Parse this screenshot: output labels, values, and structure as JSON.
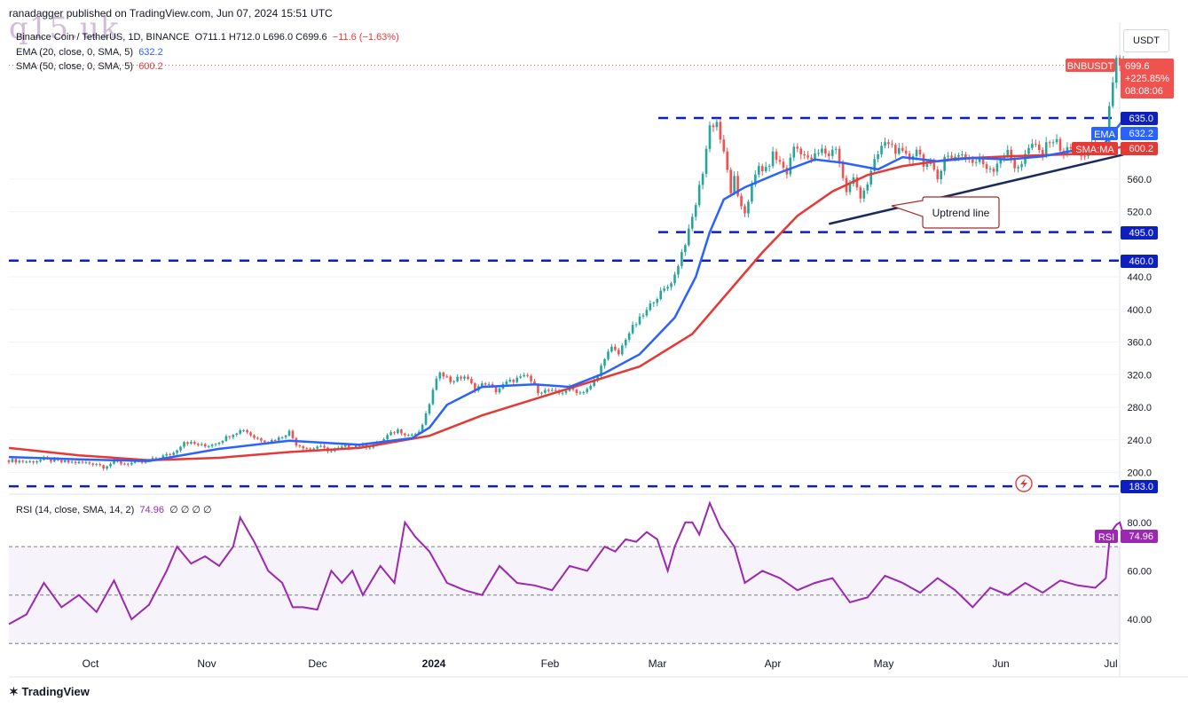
{
  "header": {
    "publisher": "ranadagger published on TradingView.com, Jun 07, 2024 15:51 UTC",
    "watermark": "q15.uk"
  },
  "legend": {
    "symbol": "Binance Coin / TetherUS, 1D, BINANCE",
    "ohlc": "O711.1 H712.0 L696.0 C699.6",
    "change": "−11.6 (−1.63%)",
    "ema_label": "EMA (20, close, 0, SMA, 5)",
    "ema_value": "632.2",
    "sma_label": "SMA (50, close, 0, SMA, 5)",
    "sma_value": "600.2",
    "rsi_label": "RSI (14, close, SMA, 14, 2)",
    "rsi_value": "74.96",
    "rsi_extra": "∅ ∅ ∅ ∅"
  },
  "currency_button": "USDT",
  "price_tag": {
    "symbol": "BNBUSDT",
    "price": "699.6",
    "change": "+225.85%",
    "countdown": "08:08:06"
  },
  "level_tags": {
    "res": "635.0",
    "ema": "EMA",
    "ema_val": "632.2",
    "sma": "SMA:MA",
    "sma_val": "600.2",
    "s1": "495.0",
    "s2": "460.0",
    "s3": "183.0"
  },
  "rsi_tag": {
    "label": "RSI",
    "value": "74.96"
  },
  "annotation": "Uptrend line",
  "footer": {
    "brand": "TradingView"
  },
  "colors": {
    "up": "#26a69a",
    "down": "#ef5350",
    "ema": "#2962ff",
    "sma": "#e53935",
    "rsi": "#9c27b0",
    "levels": "#0d1fbf",
    "trendline": "#1a2a5a"
  },
  "chart_data": {
    "type": "candlestick",
    "symbol": "BNBUSDT",
    "price_axis": {
      "ticks": [
        200.0,
        240.0,
        280.0,
        320.0,
        360.0,
        400.0,
        440.0,
        520.0,
        560.0
      ],
      "range": [
        180,
        728
      ]
    },
    "time_axis": [
      "Oct",
      "Nov",
      "Dec",
      "2024",
      "Feb",
      "Mar",
      "Apr",
      "May",
      "Jun",
      "Jul"
    ],
    "horizontal_levels": [
      635.0,
      495.0,
      460.0,
      183.0
    ],
    "close_path": [
      [
        0,
        215
      ],
      [
        6,
        213
      ],
      [
        10,
        216
      ],
      [
        15,
        213
      ],
      [
        20,
        212
      ],
      [
        25,
        211
      ],
      [
        27,
        207
      ],
      [
        30,
        213
      ],
      [
        33,
        211
      ],
      [
        38,
        212
      ],
      [
        42,
        217
      ],
      [
        47,
        224
      ],
      [
        50,
        238
      ],
      [
        52,
        236
      ],
      [
        56,
        232
      ],
      [
        60,
        238
      ],
      [
        64,
        248
      ],
      [
        67,
        253
      ],
      [
        70,
        243
      ],
      [
        74,
        238
      ],
      [
        77,
        242
      ],
      [
        80,
        250
      ],
      [
        82,
        235
      ],
      [
        86,
        228
      ],
      [
        88,
        232
      ],
      [
        92,
        226
      ],
      [
        96,
        232
      ],
      [
        99,
        233
      ],
      [
        103,
        232
      ],
      [
        106,
        236
      ],
      [
        108,
        245
      ],
      [
        111,
        252
      ],
      [
        114,
        246
      ],
      [
        117,
        248
      ],
      [
        119,
        270
      ],
      [
        121,
        300
      ],
      [
        123,
        325
      ],
      [
        126,
        312
      ],
      [
        130,
        318
      ],
      [
        133,
        303
      ],
      [
        136,
        310
      ],
      [
        139,
        300
      ],
      [
        142,
        310
      ],
      [
        145,
        315
      ],
      [
        148,
        318
      ],
      [
        151,
        300
      ],
      [
        154,
        300
      ],
      [
        157,
        297
      ],
      [
        160,
        303
      ],
      [
        163,
        298
      ],
      [
        166,
        305
      ],
      [
        168,
        318
      ],
      [
        170,
        342
      ],
      [
        172,
        352
      ],
      [
        174,
        345
      ],
      [
        176,
        365
      ],
      [
        178,
        378
      ],
      [
        180,
        388
      ],
      [
        182,
        398
      ],
      [
        184,
        412
      ],
      [
        186,
        420
      ],
      [
        188,
        428
      ],
      [
        190,
        442
      ],
      [
        192,
        470
      ],
      [
        194,
        495
      ],
      [
        196,
        530
      ],
      [
        198,
        570
      ],
      [
        200,
        625
      ],
      [
        202,
        630
      ],
      [
        203,
        610
      ],
      [
        205,
        570
      ],
      [
        206,
        545
      ],
      [
        207,
        560
      ],
      [
        208,
        535
      ],
      [
        210,
        520
      ],
      [
        212,
        550
      ],
      [
        214,
        575
      ],
      [
        216,
        570
      ],
      [
        218,
        590
      ],
      [
        220,
        580
      ],
      [
        222,
        568
      ],
      [
        224,
        600
      ],
      [
        226,
        595
      ],
      [
        228,
        583
      ],
      [
        230,
        588
      ],
      [
        232,
        595
      ],
      [
        234,
        590
      ],
      [
        236,
        600
      ],
      [
        238,
        560
      ],
      [
        239,
        545
      ],
      [
        241,
        560
      ],
      [
        243,
        540
      ],
      [
        245,
        555
      ],
      [
        247,
        580
      ],
      [
        249,
        600
      ],
      [
        251,
        605
      ],
      [
        253,
        596
      ],
      [
        255,
        590
      ],
      [
        257,
        585
      ],
      [
        259,
        598
      ],
      [
        261,
        580
      ],
      [
        263,
        575
      ],
      [
        265,
        560
      ],
      [
        267,
        590
      ],
      [
        269,
        585
      ],
      [
        271,
        592
      ],
      [
        273,
        588
      ],
      [
        275,
        580
      ],
      [
        277,
        583
      ],
      [
        279,
        575
      ],
      [
        281,
        573
      ],
      [
        283,
        588
      ],
      [
        285,
        592
      ],
      [
        287,
        575
      ],
      [
        289,
        580
      ],
      [
        291,
        598
      ],
      [
        293,
        600
      ],
      [
        295,
        590
      ],
      [
        297,
        610
      ],
      [
        299,
        605
      ],
      [
        301,
        592
      ],
      [
        303,
        598
      ],
      [
        305,
        593
      ],
      [
        307,
        590
      ],
      [
        309,
        600
      ],
      [
        311,
        598
      ],
      [
        313,
        605
      ],
      [
        314,
        648
      ],
      [
        315,
        673
      ],
      [
        316,
        714
      ],
      [
        317,
        704
      ],
      [
        318,
        699.6
      ]
    ],
    "ema20_path": [
      [
        0,
        219
      ],
      [
        20,
        216
      ],
      [
        40,
        214
      ],
      [
        60,
        229
      ],
      [
        80,
        239
      ],
      [
        100,
        234
      ],
      [
        115,
        242
      ],
      [
        120,
        255
      ],
      [
        125,
        283
      ],
      [
        135,
        305
      ],
      [
        150,
        308
      ],
      [
        160,
        305
      ],
      [
        170,
        322
      ],
      [
        180,
        345
      ],
      [
        190,
        390
      ],
      [
        196,
        440
      ],
      [
        200,
        495
      ],
      [
        204,
        535
      ],
      [
        210,
        550
      ],
      [
        220,
        568
      ],
      [
        230,
        584
      ],
      [
        238,
        580
      ],
      [
        248,
        572
      ],
      [
        255,
        587
      ],
      [
        265,
        582
      ],
      [
        275,
        586
      ],
      [
        285,
        584
      ],
      [
        295,
        588
      ],
      [
        305,
        596
      ],
      [
        312,
        600
      ],
      [
        316,
        622
      ],
      [
        318,
        632.2
      ]
    ],
    "sma50_path": [
      [
        0,
        230
      ],
      [
        20,
        221
      ],
      [
        40,
        215
      ],
      [
        60,
        218
      ],
      [
        80,
        225
      ],
      [
        100,
        230
      ],
      [
        120,
        245
      ],
      [
        135,
        270
      ],
      [
        150,
        290
      ],
      [
        165,
        310
      ],
      [
        180,
        330
      ],
      [
        195,
        370
      ],
      [
        205,
        420
      ],
      [
        215,
        470
      ],
      [
        225,
        515
      ],
      [
        235,
        545
      ],
      [
        245,
        565
      ],
      [
        255,
        576
      ],
      [
        270,
        585
      ],
      [
        285,
        588
      ],
      [
        300,
        590
      ],
      [
        310,
        592
      ],
      [
        316,
        598
      ],
      [
        318,
        600.2
      ]
    ],
    "rsi": {
      "ticks": [
        40.0,
        60.0,
        80.0
      ],
      "levels": [
        70,
        50,
        30
      ],
      "path": [
        [
          0,
          38
        ],
        [
          5,
          42
        ],
        [
          10,
          55
        ],
        [
          15,
          45
        ],
        [
          20,
          50
        ],
        [
          25,
          43
        ],
        [
          30,
          56
        ],
        [
          35,
          40
        ],
        [
          40,
          46
        ],
        [
          45,
          60
        ],
        [
          48,
          70
        ],
        [
          52,
          63
        ],
        [
          56,
          66
        ],
        [
          60,
          62
        ],
        [
          64,
          70
        ],
        [
          66,
          82
        ],
        [
          70,
          72
        ],
        [
          74,
          60
        ],
        [
          78,
          55
        ],
        [
          81,
          45
        ],
        [
          84,
          45
        ],
        [
          88,
          44
        ],
        [
          92,
          60
        ],
        [
          95,
          55
        ],
        [
          98,
          60
        ],
        [
          101,
          50
        ],
        [
          106,
          62
        ],
        [
          110,
          55
        ],
        [
          113,
          80
        ],
        [
          116,
          74
        ],
        [
          120,
          68
        ],
        [
          125,
          55
        ],
        [
          130,
          52
        ],
        [
          135,
          50
        ],
        [
          140,
          62
        ],
        [
          145,
          55
        ],
        [
          150,
          54
        ],
        [
          155,
          52
        ],
        [
          160,
          62
        ],
        [
          165,
          60
        ],
        [
          170,
          70
        ],
        [
          173,
          68
        ],
        [
          176,
          73
        ],
        [
          179,
          72
        ],
        [
          182,
          76
        ],
        [
          185,
          73
        ],
        [
          188,
          60
        ],
        [
          190,
          70
        ],
        [
          193,
          80
        ],
        [
          195,
          80
        ],
        [
          197,
          75
        ],
        [
          200,
          88
        ],
        [
          203,
          78
        ],
        [
          207,
          70
        ],
        [
          210,
          55
        ],
        [
          215,
          60
        ],
        [
          220,
          57
        ],
        [
          225,
          52
        ],
        [
          230,
          55
        ],
        [
          235,
          57
        ],
        [
          240,
          47
        ],
        [
          245,
          49
        ],
        [
          250,
          58
        ],
        [
          255,
          55
        ],
        [
          260,
          51
        ],
        [
          265,
          57
        ],
        [
          270,
          52
        ],
        [
          275,
          45
        ],
        [
          280,
          53
        ],
        [
          285,
          50
        ],
        [
          290,
          55
        ],
        [
          295,
          51
        ],
        [
          300,
          56
        ],
        [
          305,
          54
        ],
        [
          310,
          53
        ],
        [
          313,
          57
        ],
        [
          314,
          72
        ],
        [
          315,
          77
        ],
        [
          316,
          79
        ],
        [
          317,
          80
        ],
        [
          318,
          74.96
        ]
      ]
    },
    "uptrend_line": [
      [
        234,
        505
      ],
      [
        318,
        590
      ]
    ],
    "annotations": [
      "Uptrend line"
    ]
  }
}
